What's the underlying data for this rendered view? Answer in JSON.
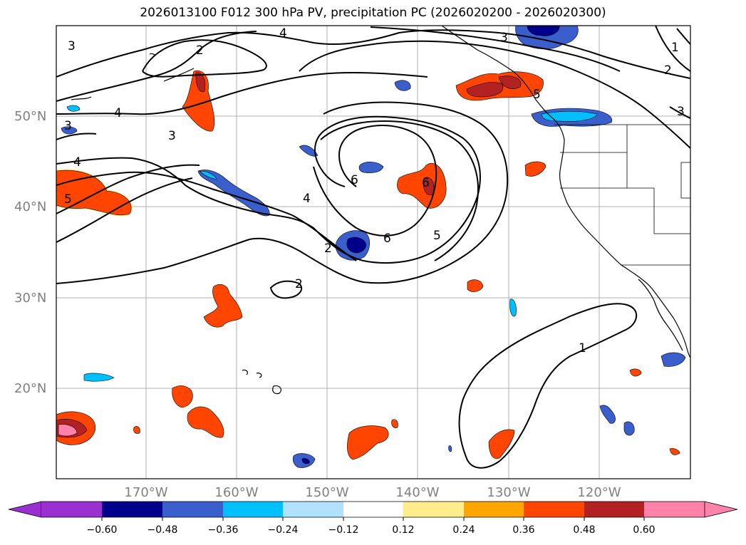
{
  "title": "2026013100 F012 300 hPa PV, precipitation PC (2026020200 - 2026020300)",
  "axes": {
    "lat_labels": [
      "50°N",
      "40°N",
      "30°N",
      "20°N"
    ],
    "lon_labels": [
      "170°W",
      "160°W",
      "150°W",
      "140°W",
      "130°W",
      "120°W"
    ]
  },
  "colorbar": {
    "ticks": [
      "−0.60",
      "−0.48",
      "−0.36",
      "−0.24",
      "−0.12",
      "0.12",
      "0.24",
      "0.36",
      "0.48",
      "0.60"
    ],
    "colors": [
      "#9b30d0",
      "#00008b",
      "#3a5fcd",
      "#00bfff",
      "#b0e2ff",
      "#ffffff",
      "#ffec8b",
      "#ffa500",
      "#ff4500",
      "#b22222",
      "#ff82ab"
    ]
  },
  "contour_labels": [
    "3",
    "2",
    "4",
    "3",
    "1",
    "2",
    "3",
    "4",
    "3",
    "4",
    "3",
    "5",
    "6",
    "6",
    "4",
    "2",
    "5",
    "6",
    "5",
    "2",
    "1"
  ],
  "palette": {
    "neg_dark": "#00008b",
    "neg_mid": "#3a5fcd",
    "neg_light": "#00bfff",
    "pos_light": "#ffec8b",
    "pos_orange": "#ffa500",
    "pos_red": "#ff4500",
    "pos_dark": "#b22222",
    "pos_pink": "#ff82ab"
  }
}
